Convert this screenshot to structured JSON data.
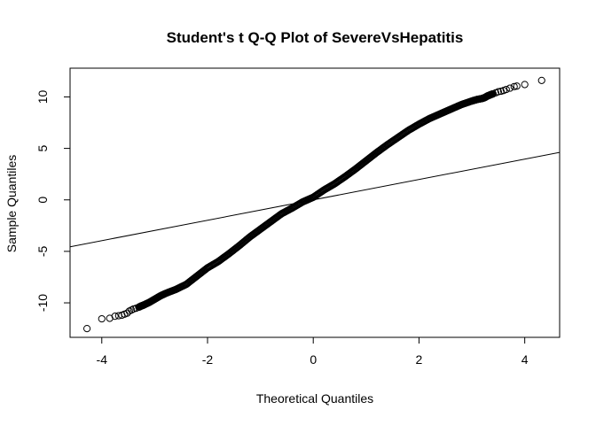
{
  "chart_data": {
    "type": "scatter",
    "title": "Student's t Q-Q Plot of SevereVsHepatitis",
    "xlabel": "Theoretical Quantiles",
    "ylabel": "Sample Quantiles",
    "xlim": [
      -4.6,
      4.66
    ],
    "ylim": [
      -13.35,
      12.79
    ],
    "x_ticks": [
      -4,
      -2,
      0,
      2,
      4
    ],
    "x_tick_labels": [
      "-4",
      "-2",
      "0",
      "2",
      "4"
    ],
    "y_ticks": [
      -10,
      -5,
      0,
      5,
      10
    ],
    "y_tick_labels": [
      "-10",
      "-5",
      "0",
      "5",
      "10"
    ],
    "grid": false,
    "legend": "none",
    "point_color": "#000000",
    "reference_line": {
      "slope": 0.99,
      "intercept": 0.0
    },
    "series": [
      {
        "marker": "open-circle",
        "points": [
          [
            -4.28,
            -12.5
          ],
          [
            -4.0,
            -11.55
          ],
          [
            -3.85,
            -11.5
          ],
          [
            -3.75,
            -11.3
          ],
          [
            -3.68,
            -11.25
          ],
          [
            -3.62,
            -11.2
          ],
          [
            -3.57,
            -11.1
          ],
          [
            -3.52,
            -11.0
          ],
          [
            -3.48,
            -10.8
          ],
          [
            -3.44,
            -10.7
          ],
          [
            -3.4,
            -10.6
          ],
          [
            -3.35,
            -10.52
          ],
          [
            -3.3,
            -10.42
          ],
          [
            -3.25,
            -10.3
          ],
          [
            -3.2,
            -10.2
          ],
          [
            -3.1,
            -9.95
          ],
          [
            -3.0,
            -9.65
          ],
          [
            -2.9,
            -9.35
          ],
          [
            -2.8,
            -9.1
          ],
          [
            -2.6,
            -8.7
          ],
          [
            -2.4,
            -8.2
          ],
          [
            -2.2,
            -7.4
          ],
          [
            -2.0,
            -6.6
          ],
          [
            -1.8,
            -6.0
          ],
          [
            -1.6,
            -5.25
          ],
          [
            -1.4,
            -4.45
          ],
          [
            -1.2,
            -3.6
          ],
          [
            -1.0,
            -2.85
          ],
          [
            -0.8,
            -2.1
          ],
          [
            -0.6,
            -1.35
          ],
          [
            -0.4,
            -0.8
          ],
          [
            -0.2,
            -0.2
          ],
          [
            0.0,
            0.25
          ],
          [
            0.2,
            0.95
          ],
          [
            0.4,
            1.55
          ],
          [
            0.6,
            2.25
          ],
          [
            0.8,
            3.0
          ],
          [
            1.0,
            3.8
          ],
          [
            1.2,
            4.6
          ],
          [
            1.4,
            5.35
          ],
          [
            1.6,
            6.05
          ],
          [
            1.8,
            6.75
          ],
          [
            2.0,
            7.35
          ],
          [
            2.2,
            7.9
          ],
          [
            2.4,
            8.35
          ],
          [
            2.6,
            8.8
          ],
          [
            2.8,
            9.25
          ],
          [
            3.0,
            9.6
          ],
          [
            3.1,
            9.75
          ],
          [
            3.2,
            9.85
          ],
          [
            3.25,
            9.95
          ],
          [
            3.3,
            10.1
          ],
          [
            3.35,
            10.2
          ],
          [
            3.4,
            10.3
          ],
          [
            3.45,
            10.4
          ],
          [
            3.5,
            10.5
          ],
          [
            3.55,
            10.55
          ],
          [
            3.6,
            10.62
          ],
          [
            3.65,
            10.72
          ],
          [
            3.72,
            10.85
          ],
          [
            3.8,
            11.0
          ],
          [
            3.85,
            11.05
          ],
          [
            4.0,
            11.2
          ],
          [
            4.32,
            11.6
          ]
        ]
      }
    ]
  }
}
